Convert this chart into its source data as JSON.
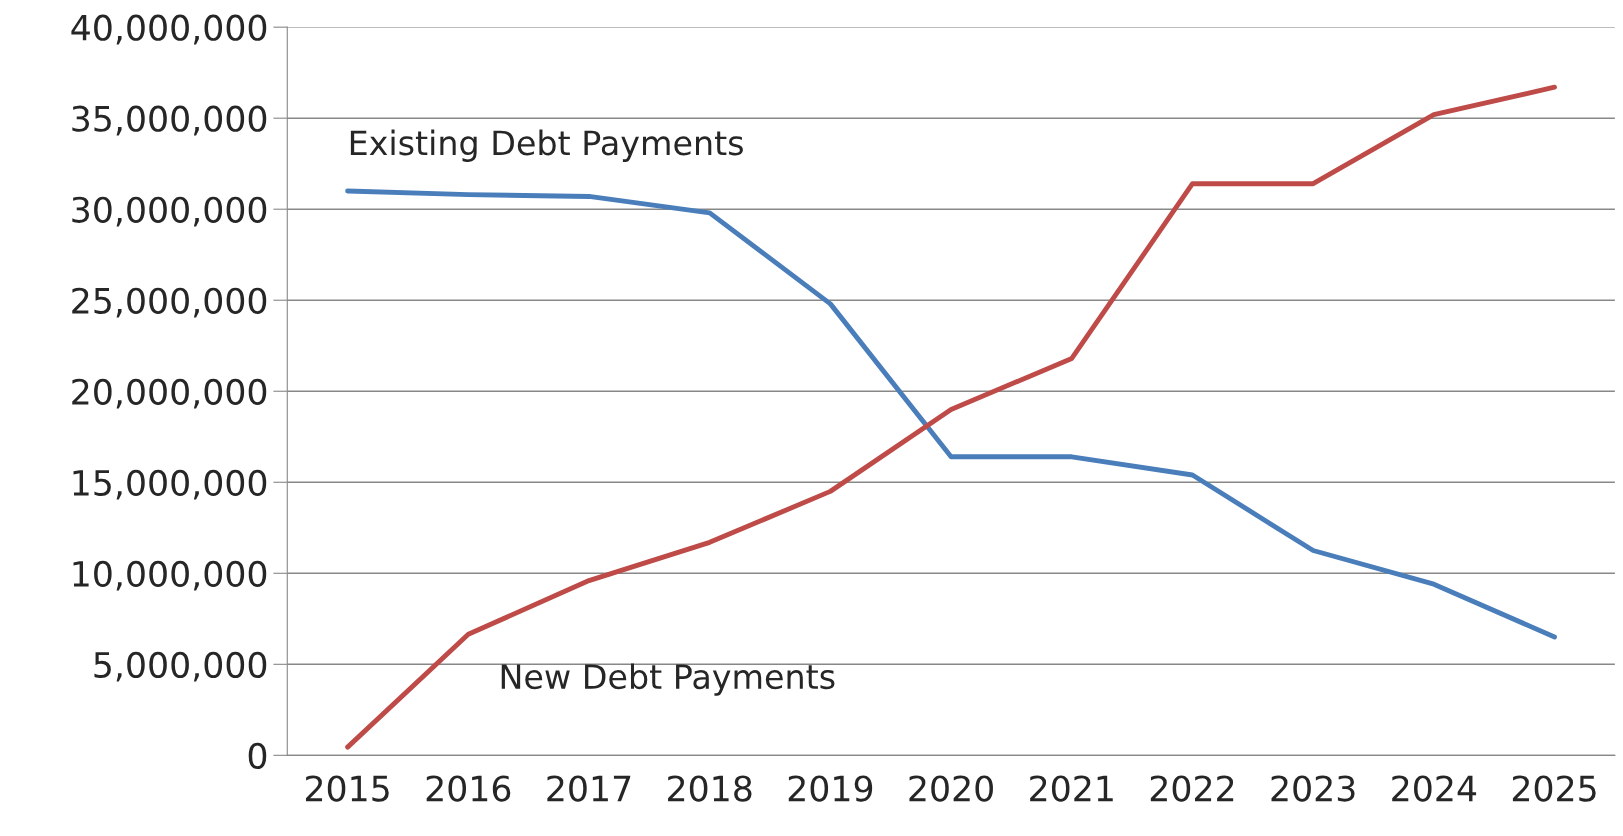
{
  "chart_data": {
    "type": "line",
    "categories": [
      "2015",
      "2016",
      "2017",
      "2018",
      "2019",
      "2020",
      "2021",
      "2022",
      "2023",
      "2024",
      "2025"
    ],
    "series": [
      {
        "name": "Existing Debt Payments",
        "color": "#4a7ebb",
        "values": [
          31000000,
          30800000,
          30700000,
          29800000,
          24800000,
          16400000,
          16400000,
          15400000,
          11250000,
          9400000,
          6500000
        ]
      },
      {
        "name": "New Debt Payments",
        "color": "#be4b48",
        "values": [
          450000,
          6650000,
          9600000,
          11700000,
          14500000,
          19000000,
          21800000,
          31400000,
          31400000,
          35200000,
          36700000
        ]
      }
    ],
    "ylim": [
      0,
      40000000
    ],
    "yticks": [
      {
        "value": 0,
        "label": "0"
      },
      {
        "value": 5000000,
        "label": "5,000,000"
      },
      {
        "value": 10000000,
        "label": "10,000,000"
      },
      {
        "value": 15000000,
        "label": "15,000,000"
      },
      {
        "value": 20000000,
        "label": "20,000,000"
      },
      {
        "value": 25000000,
        "label": "25,000,000"
      },
      {
        "value": 30000000,
        "label": "30,000,000"
      },
      {
        "value": 35000000,
        "label": "35,000,000"
      },
      {
        "value": 40000000,
        "label": "40,000,000"
      }
    ],
    "grid": "y",
    "legend": false,
    "marker": "none",
    "line_style": "solid"
  }
}
